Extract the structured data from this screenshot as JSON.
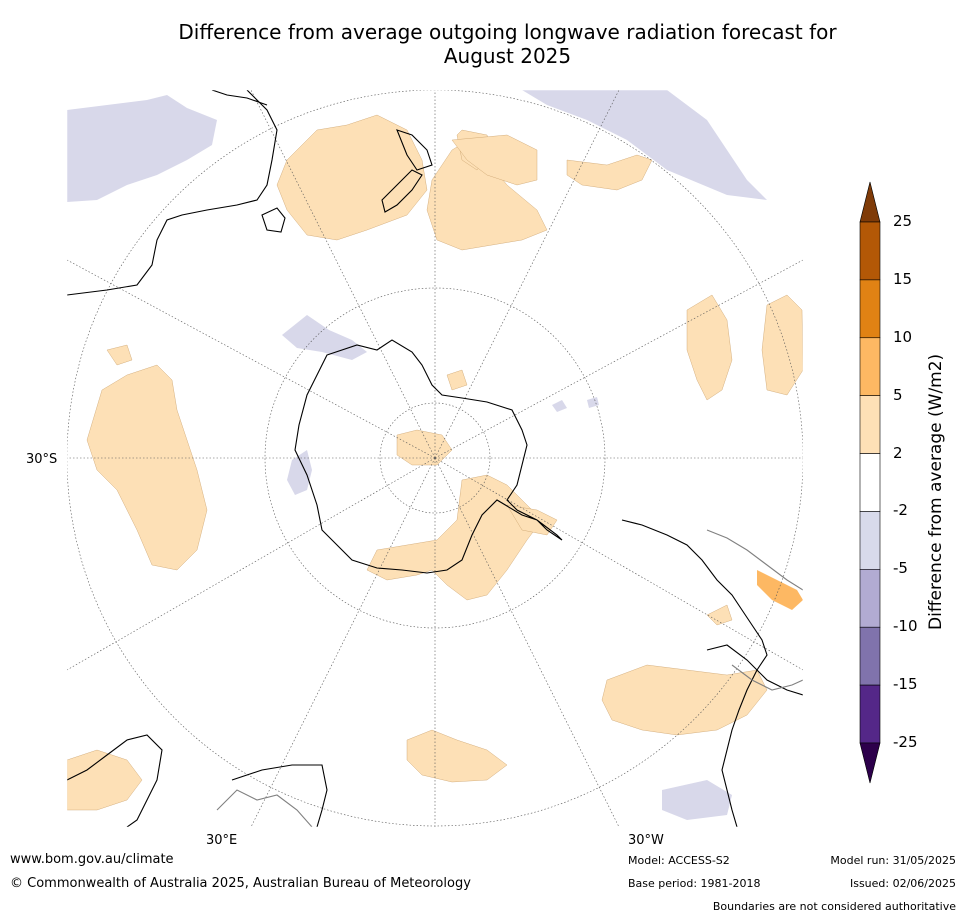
{
  "title_line1": "Difference from average outgoing longwave radiation forecast for",
  "title_line2": "August 2025",
  "map": {
    "lat_label": "30°S",
    "lon_labels": [
      "30°E",
      "30°W"
    ],
    "colors": {
      "ocean": "#ffffff",
      "neg_light": "#d8d8ea",
      "pos_light": "#fde0b6",
      "pos_mid": "#fdb863",
      "coast": "#000000",
      "boundary": "#808080",
      "graticule": "#555555"
    }
  },
  "colorbar": {
    "title": "Difference from average (W/m2)",
    "ticks": [
      "25",
      "15",
      "10",
      "5",
      "2",
      "-2",
      "-5",
      "-10",
      "-15",
      "-25"
    ],
    "colors": [
      "#7f3b08",
      "#b35806",
      "#e08214",
      "#fdb863",
      "#fee0b6",
      "#ffffff",
      "#d8daeb",
      "#b2abd2",
      "#8073ac",
      "#542788",
      "#2d004b"
    ]
  },
  "footer": {
    "website": "www.bom.gov.au/climate",
    "copyright": "© Commonwealth of Australia 2025, Australian Bureau of Meteorology",
    "model": "Model: ACCESS-S2",
    "base_period": "Base period: 1981-2018",
    "model_run": "Model run: 31/05/2025",
    "issued": "Issued: 02/06/2025",
    "disclaimer": "Boundaries are not considered authoritative"
  }
}
